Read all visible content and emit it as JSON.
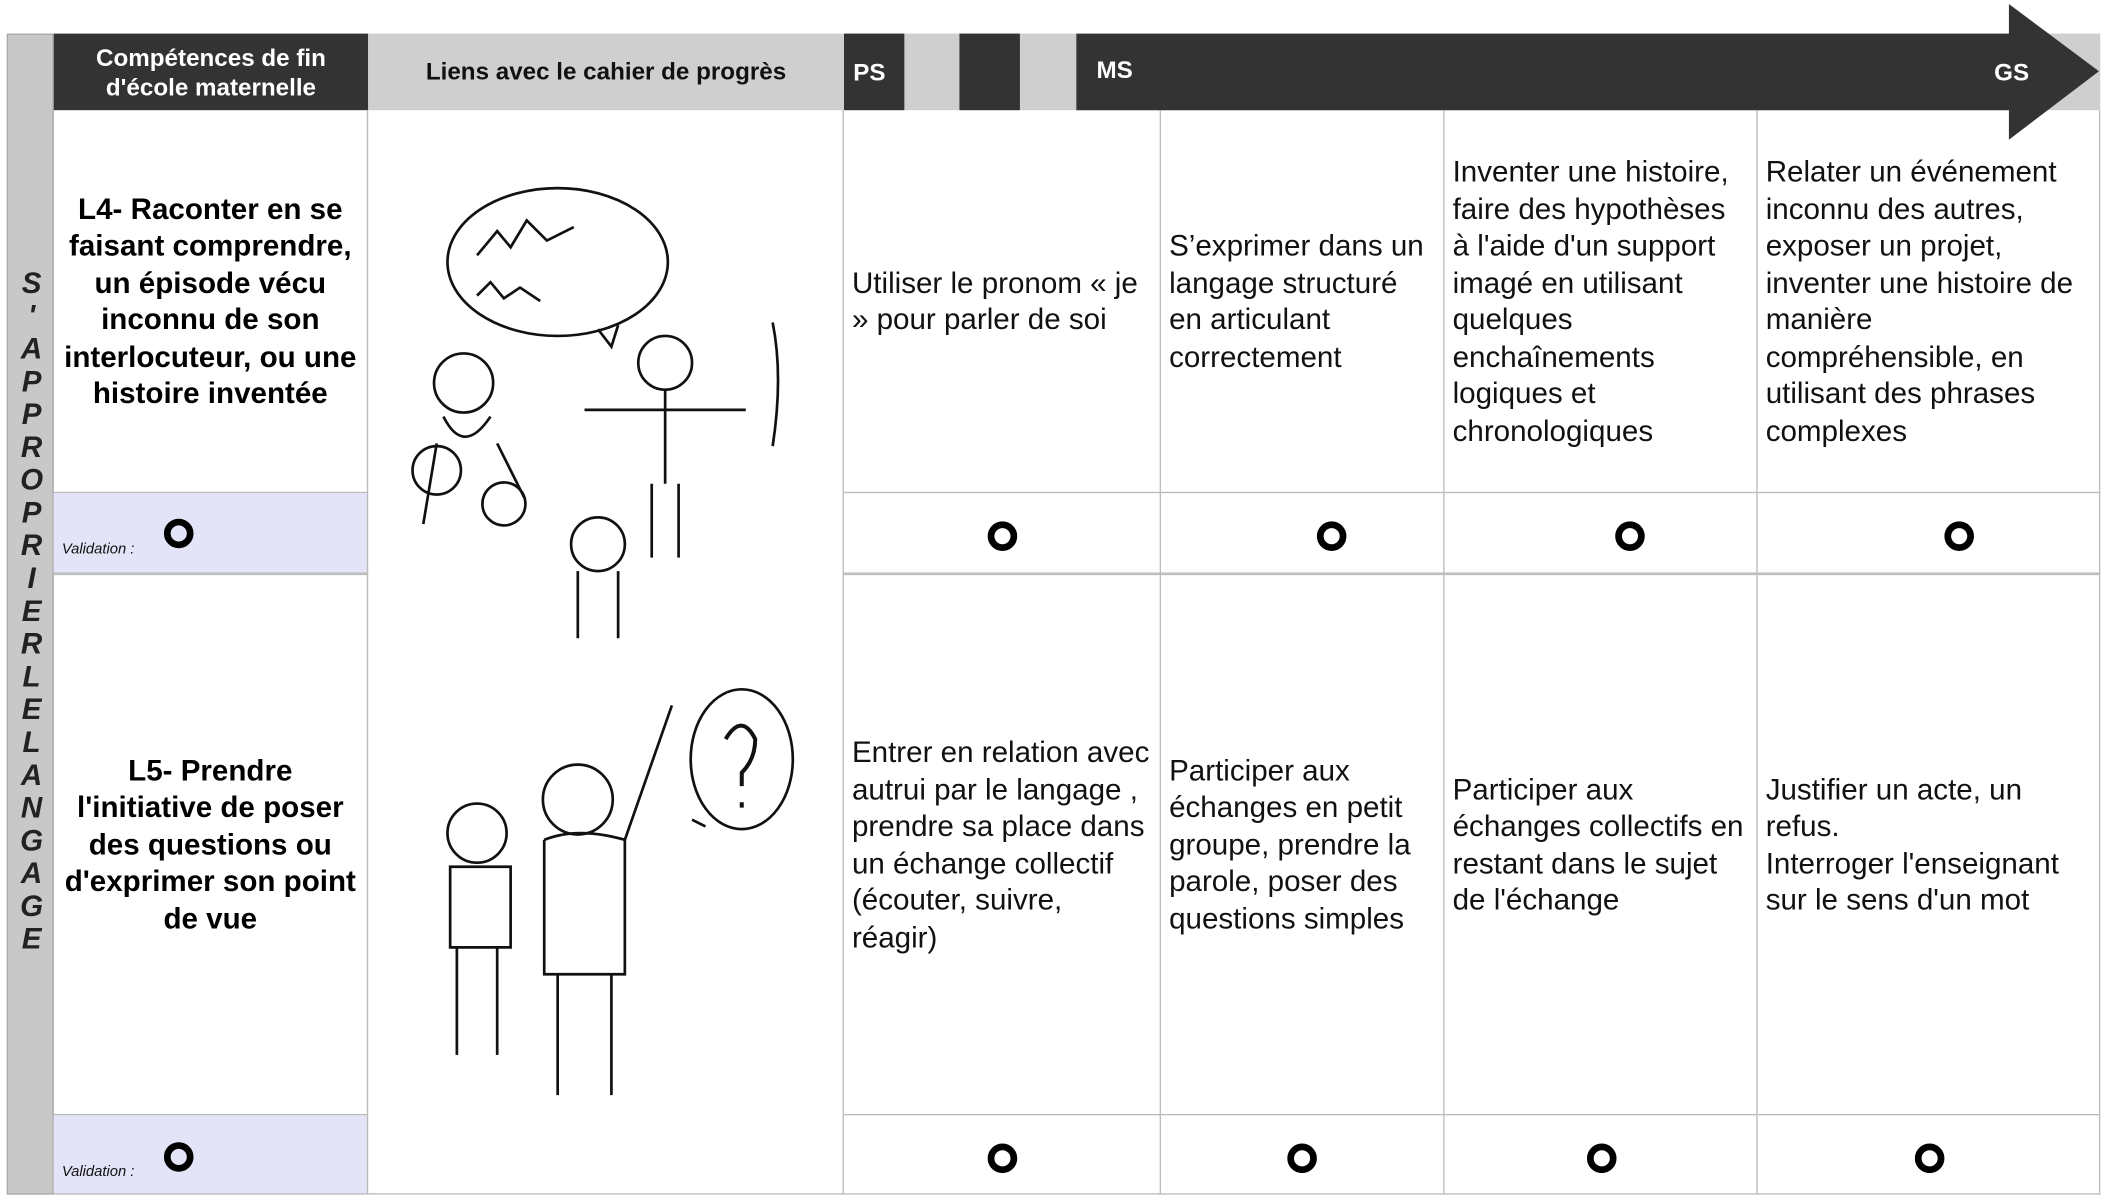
{
  "header": {
    "competences": "Compétences de fin d'école maternelle",
    "liens": "Liens avec le cahier de progrès",
    "levels": [
      "PS",
      "MS",
      "GS"
    ]
  },
  "side_label": "S'APPROPRIERLELANGAGE",
  "rows": [
    {
      "competence": "L4- Raconter en se faisant comprendre, un épisode vécu inconnu de son interlocuteur, ou une histoire inventée",
      "items": [
        "Utiliser le pronom « je » pour parler de soi",
        "S’exprimer dans un langage structuré en articulant correctement",
        "Inventer une histoire, faire des hypothèses à l'aide d'un support imagé en utilisant quelques enchaînements logiques et chronologiques",
        "Relater un événement inconnu des autres, exposer un projet, inventer une histoire de manière compréhensible, en utilisant des phrases complexes"
      ],
      "validation_label": "Validation :"
    },
    {
      "competence": "L5- Prendre l'initiative de poser des questions ou d'exprimer son point de vue",
      "items": [
        "Entrer en relation avec autrui par le langage , prendre sa place dans un échange collectif (écouter, suivre, réagir)",
        "Participer aux échanges en petit groupe, prendre la parole, poser des questions simples",
        "Participer aux échanges collectifs en restant dans le sujet de l'échange",
        "Justifier un acte, un refus.\nInterroger l'enseignant sur le sens d'un mot"
      ],
      "validation_label": "Validation :"
    }
  ]
}
